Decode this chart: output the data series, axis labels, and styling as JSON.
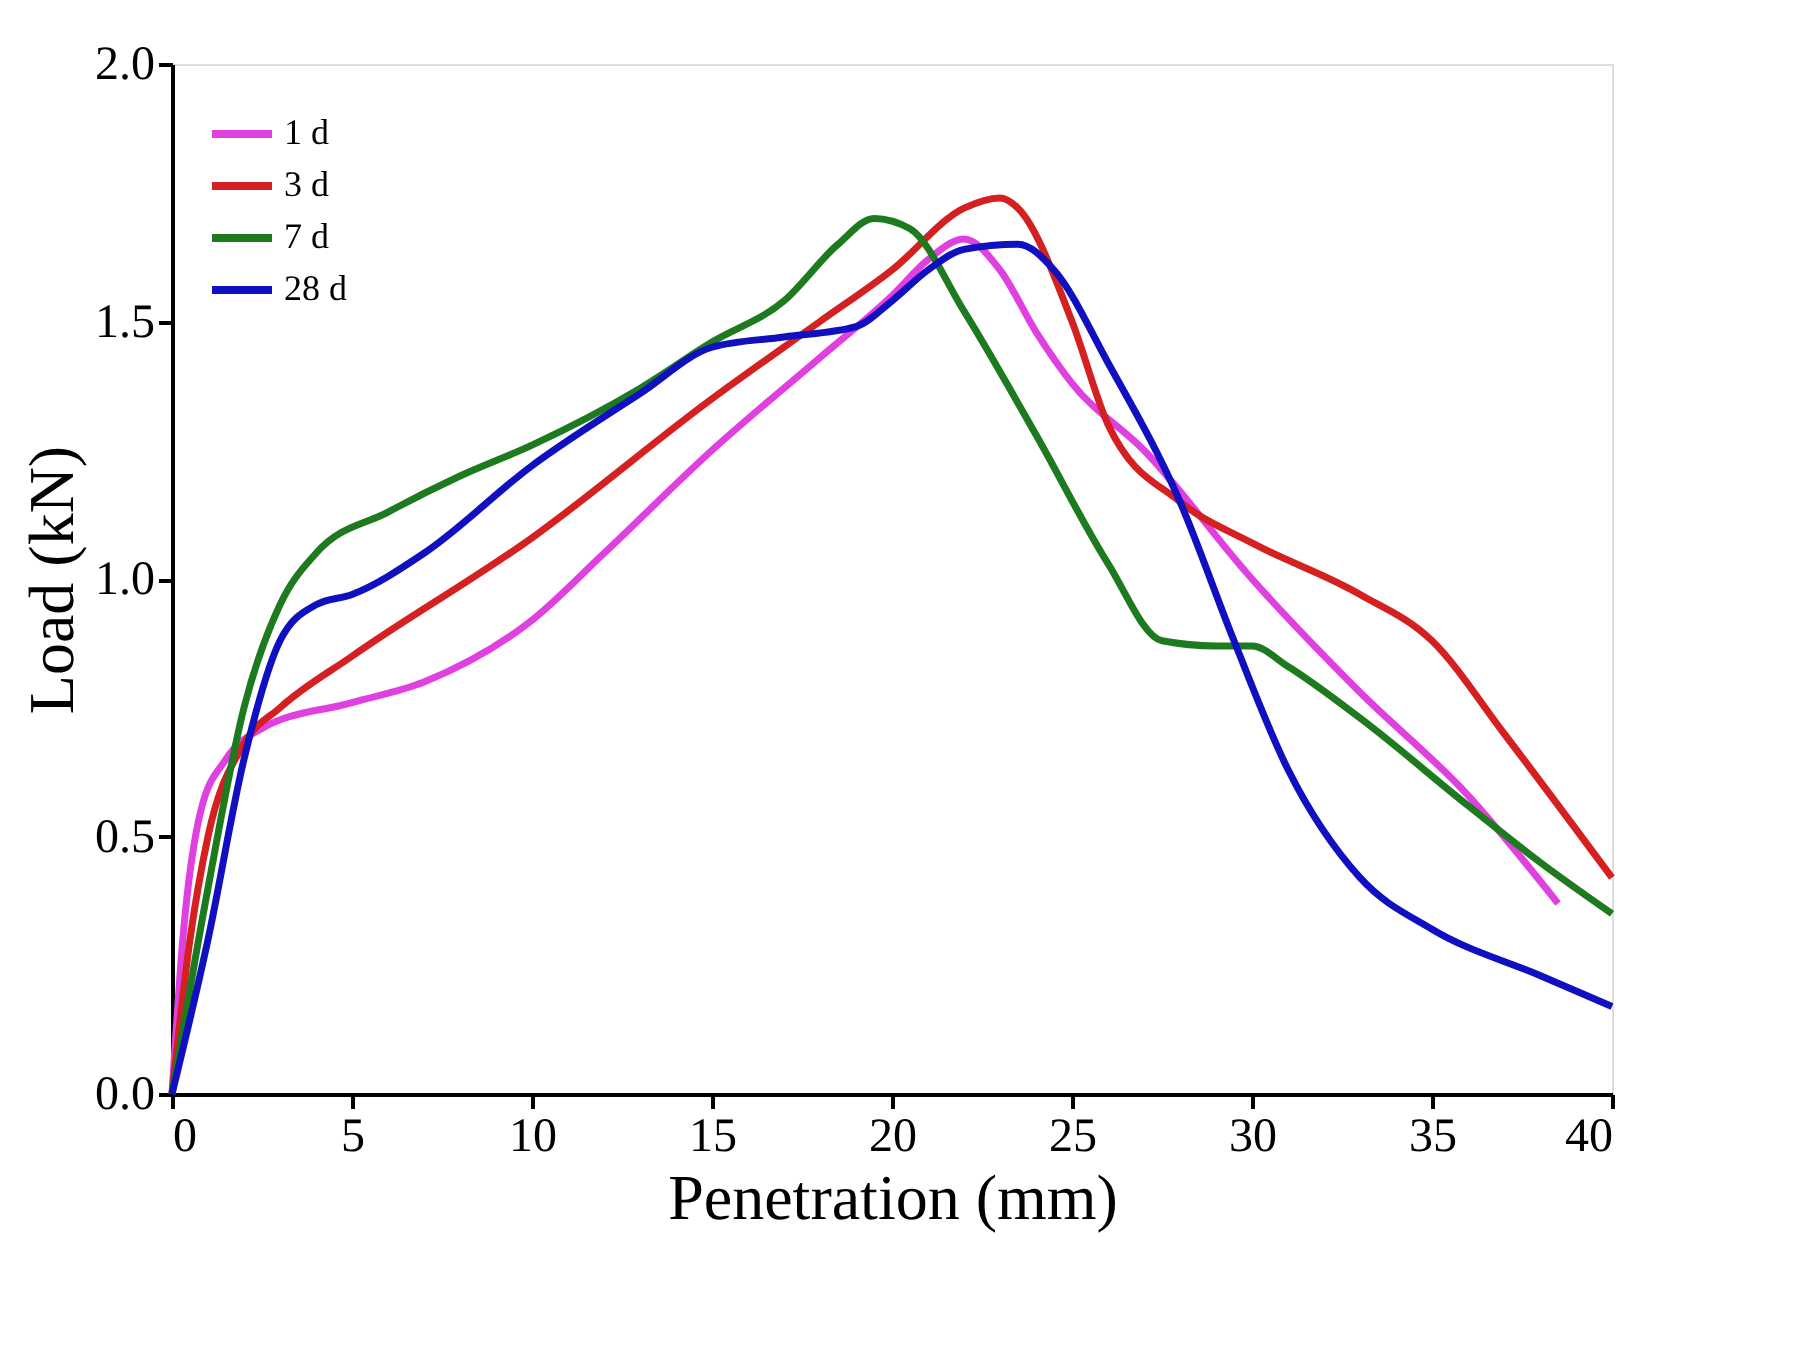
{
  "chart_data": {
    "type": "line",
    "xlabel": "Penetration (mm)",
    "ylabel": "Load (kN)",
    "xlim": [
      0,
      40
    ],
    "xticks": [
      0,
      5,
      10,
      15,
      20,
      25,
      30,
      35,
      40
    ],
    "ylim": [
      0,
      2
    ],
    "yticks": [
      {
        "value": 0,
        "label": "0.0"
      },
      {
        "value": 0.5,
        "label": "0.5"
      },
      {
        "value": 1,
        "label": "1.0"
      },
      {
        "value": 1.5,
        "label": "1.5"
      },
      {
        "value": 2,
        "label": "2.0"
      }
    ],
    "grid": false,
    "legend": "top left",
    "marker": "none",
    "line_style": "solid",
    "series": [
      {
        "name": "1 d",
        "color": "#e040e0",
        "x": [
          0,
          0.3,
          0.8,
          1.5,
          2.5,
          5,
          7,
          10,
          12,
          15,
          18,
          20,
          21,
          22,
          23,
          24,
          25,
          27,
          30,
          33,
          36,
          38.5
        ],
        "values": [
          0,
          0.3,
          0.55,
          0.65,
          0.71,
          0.76,
          0.8,
          0.92,
          1.05,
          1.25,
          1.43,
          1.55,
          1.62,
          1.66,
          1.6,
          1.48,
          1.38,
          1.25,
          1.0,
          0.78,
          0.58,
          0.37
        ]
      },
      {
        "name": "3 d",
        "color": "#d42020",
        "x": [
          0,
          0.5,
          1,
          2,
          3,
          5,
          10,
          15,
          18,
          20,
          22,
          23,
          23.5,
          25,
          26,
          28,
          30,
          33,
          35,
          37,
          40
        ],
        "values": [
          0,
          0.3,
          0.5,
          0.68,
          0.75,
          0.85,
          1.08,
          1.35,
          1.5,
          1.6,
          1.72,
          1.74,
          1.72,
          1.5,
          1.3,
          1.15,
          1.07,
          0.97,
          0.88,
          0.7,
          0.42
        ]
      },
      {
        "name": "7 d",
        "color": "#1e7a1e",
        "x": [
          0,
          1,
          2,
          3,
          4,
          6,
          8,
          10,
          13,
          15,
          17,
          18.5,
          19.5,
          20.5,
          22,
          24,
          26,
          27.5,
          29,
          30,
          31,
          33,
          36,
          38,
          40
        ],
        "values": [
          0,
          0.4,
          0.75,
          0.95,
          1.05,
          1.13,
          1.2,
          1.26,
          1.37,
          1.46,
          1.54,
          1.65,
          1.7,
          1.68,
          1.52,
          1.28,
          1.03,
          0.88,
          0.87,
          0.87,
          0.83,
          0.73,
          0.56,
          0.45,
          0.35
        ]
      },
      {
        "name": "28 d",
        "color": "#1010c0",
        "x": [
          0,
          1,
          2,
          3,
          4,
          5,
          7,
          10,
          13,
          15,
          17,
          19,
          20,
          21,
          22,
          23.5,
          24.5,
          26,
          28,
          29.5,
          31,
          33,
          35,
          38,
          40
        ],
        "values": [
          0,
          0.3,
          0.65,
          0.88,
          0.95,
          0.97,
          1.05,
          1.22,
          1.36,
          1.45,
          1.47,
          1.49,
          1.54,
          1.6,
          1.64,
          1.65,
          1.6,
          1.42,
          1.15,
          0.88,
          0.63,
          0.42,
          0.32,
          0.23,
          0.17
        ]
      }
    ]
  }
}
